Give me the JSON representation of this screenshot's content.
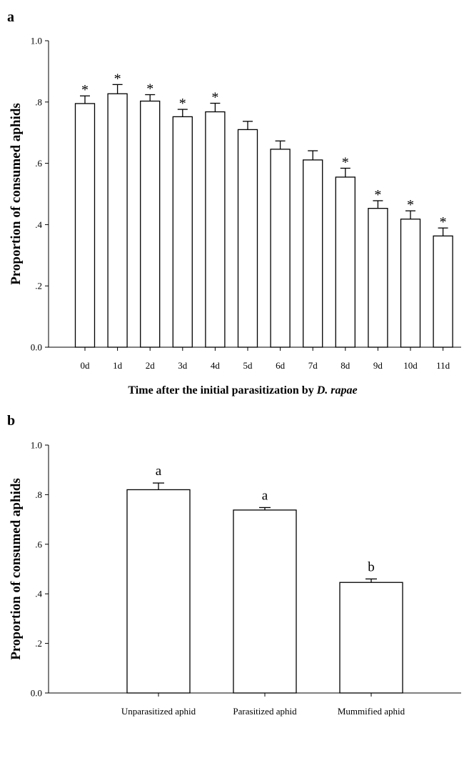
{
  "chart_data": [
    {
      "panel": "a",
      "type": "bar",
      "ylabel": "Proportion of consumed aphids",
      "xlabel_prefix": "Time after the initial parasitization by ",
      "xlabel_species": "D. rapae",
      "ylim": [
        0,
        1.0
      ],
      "yticks": [
        {
          "value": 0.0,
          "label": "0.0"
        },
        {
          "value": 0.2,
          "label": ".2"
        },
        {
          "value": 0.4,
          "label": ".4"
        },
        {
          "value": 0.6,
          "label": ".6"
        },
        {
          "value": 0.8,
          "label": ".8"
        },
        {
          "value": 1.0,
          "label": "1.0"
        }
      ],
      "categories": [
        "0d",
        "1d",
        "2d",
        "3d",
        "4d",
        "5d",
        "6d",
        "7d",
        "8d",
        "9d",
        "10d",
        "11d"
      ],
      "values": [
        0.795,
        0.827,
        0.803,
        0.752,
        0.768,
        0.71,
        0.646,
        0.611,
        0.555,
        0.453,
        0.418,
        0.363
      ],
      "errors": [
        0.025,
        0.03,
        0.021,
        0.024,
        0.028,
        0.027,
        0.027,
        0.03,
        0.029,
        0.025,
        0.027,
        0.026
      ],
      "annotations": [
        "*",
        "*",
        "*",
        "*",
        "*",
        "",
        "",
        "",
        "*",
        "*",
        "*",
        "*"
      ],
      "grid": false,
      "bar_fill": "#ffffff",
      "bar_stroke": "#000000"
    },
    {
      "panel": "b",
      "type": "bar",
      "ylabel": "Proportion of consumed aphids",
      "ylim": [
        0,
        1.0
      ],
      "yticks": [
        {
          "value": 0.0,
          "label": "0.0"
        },
        {
          "value": 0.2,
          "label": ".2"
        },
        {
          "value": 0.4,
          "label": ".4"
        },
        {
          "value": 0.6,
          "label": ".6"
        },
        {
          "value": 0.8,
          "label": ".8"
        },
        {
          "value": 1.0,
          "label": "1.0"
        }
      ],
      "categories": [
        "Unparasitized aphid",
        "Parasitized aphid",
        "Mummified aphid"
      ],
      "values": [
        0.82,
        0.738,
        0.446
      ],
      "errors": [
        0.027,
        0.01,
        0.014
      ],
      "annotations": [
        "a",
        "a",
        "b"
      ],
      "grid": false,
      "bar_fill": "#ffffff",
      "bar_stroke": "#000000"
    }
  ]
}
